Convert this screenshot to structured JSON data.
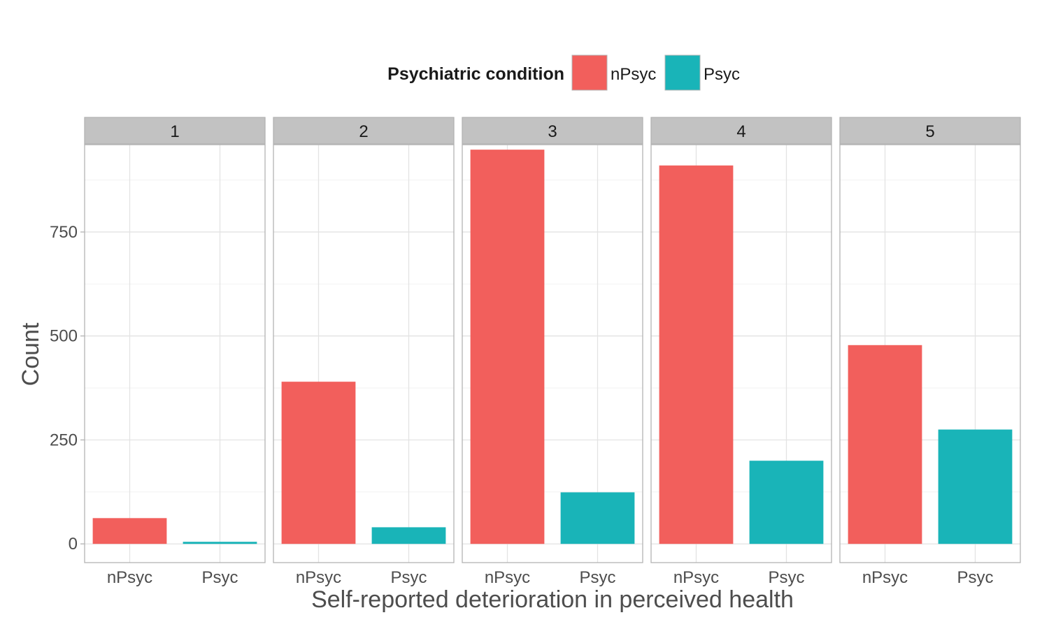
{
  "chart_data": {
    "type": "bar",
    "facet_layout": "horizontal",
    "legend": {
      "title": "Psychiatric condition",
      "position": "top",
      "entries": [
        {
          "label": "nPsyc",
          "color": "#F25F5C"
        },
        {
          "label": "Psyc",
          "color": "#19B4B8"
        }
      ]
    },
    "xlabel": "Self-reported deterioration in perceived health",
    "ylabel": "Count",
    "categories": [
      "nPsyc",
      "Psyc"
    ],
    "ylim": [
      -45,
      960
    ],
    "yticks": [
      0,
      250,
      500,
      750
    ],
    "grid": true,
    "panels": [
      {
        "label": "1",
        "values": [
          62,
          5
        ]
      },
      {
        "label": "2",
        "values": [
          390,
          40
        ]
      },
      {
        "label": "3",
        "values": [
          948,
          124
        ]
      },
      {
        "label": "4",
        "values": [
          910,
          200
        ]
      },
      {
        "label": "5",
        "values": [
          478,
          275
        ]
      }
    ]
  }
}
